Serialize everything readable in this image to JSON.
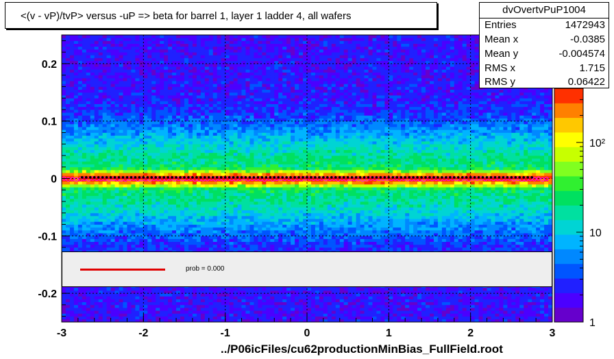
{
  "chart_data": {
    "type": "heatmap",
    "title": "<(v - vP)/tvP> versus  -uP => beta for barrel 1, layer 1 ladder 4, all wafers",
    "xlabel": "",
    "ylabel": "",
    "xlim": [
      -3,
      3
    ],
    "ylim": [
      -0.25,
      0.25
    ],
    "x_ticks": [
      "-3",
      "-2",
      "-1",
      "0",
      "1",
      "2",
      "3"
    ],
    "y_ticks": [
      "-0.2",
      "-0.1",
      "0",
      "0.1",
      "0.2"
    ],
    "x_tick_values": [
      -3,
      -2,
      -1,
      0,
      1,
      2,
      3
    ],
    "y_tick_values": [
      -0.2,
      -0.1,
      0,
      0.1,
      0.2
    ],
    "z_scale": "log",
    "z_ticks": [
      "1",
      "10",
      "10²"
    ],
    "z_tick_values": [
      1,
      10,
      100
    ],
    "z_max": 400,
    "grid": true,
    "stats": {
      "name": "dvOvertvPuP1004",
      "entries_label": "Entries",
      "entries": "1472943",
      "meanx_label": "Mean x",
      "meanx": "-0.0385",
      "meany_label": "Mean y",
      "meany": "-0.004574",
      "rmsx_label": "RMS x",
      "rmsx": "1.715",
      "rmsy_label": "RMS y",
      "rmsy": "0.06422"
    },
    "fit_legend": "prob = 0.000",
    "profile_mean": 0.0,
    "band_sigma": 0.05,
    "colors": {
      "fit_line": "#e00000",
      "profile_points": "#000000",
      "open_markers": "#ff00ff"
    }
  },
  "footer": "../P06icFiles/cu62productionMinBias_FullField.root"
}
